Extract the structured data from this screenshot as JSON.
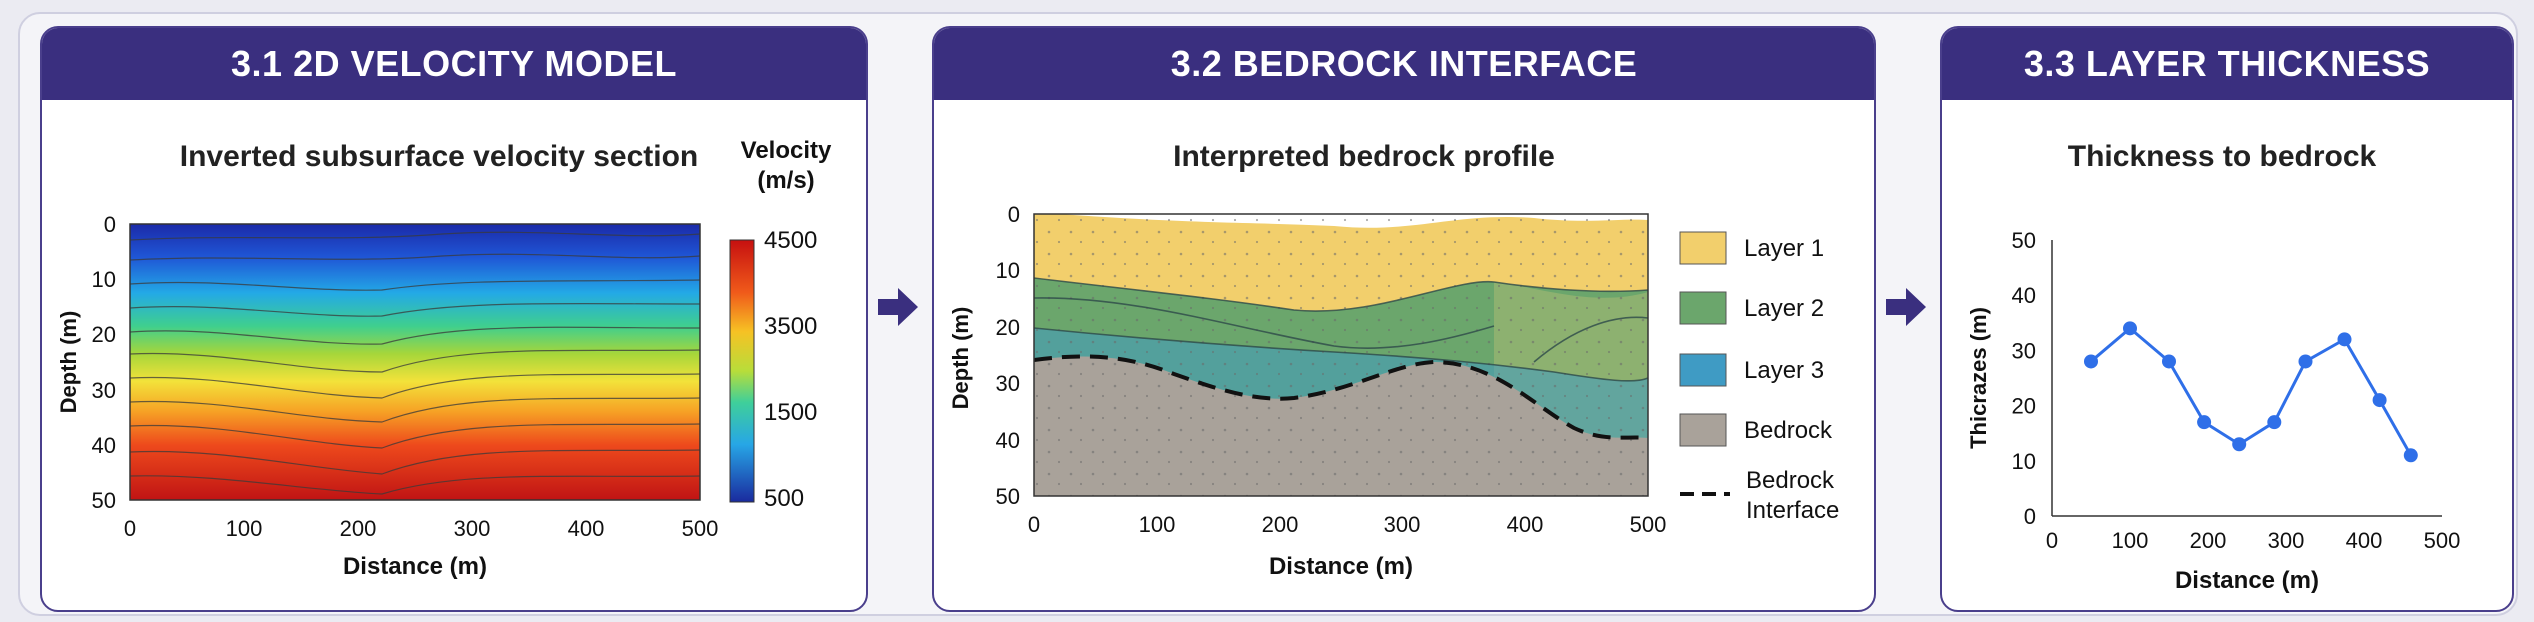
{
  "panels": [
    {
      "header": "3.1 2D VELOCITY MODEL",
      "subtitle": "Inverted subsurface velocity section",
      "xlabel": "Distance (m)",
      "ylabel": "Depth (m)",
      "x_ticks": [
        "0",
        "100",
        "200",
        "300",
        "400",
        "500"
      ],
      "y_ticks": [
        "0",
        "10",
        "20",
        "30",
        "40",
        "50"
      ],
      "colorbar_title_line1": "Velocity",
      "colorbar_title_line2": "(m/s)",
      "colorbar_ticks": [
        "4500",
        "3500",
        "1500",
        "500"
      ]
    },
    {
      "header": "3.2 BEDROCK INTERFACE",
      "subtitle": "Interpreted bedrock profile",
      "xlabel": "Distance (m)",
      "ylabel": "Depth (m)",
      "x_ticks": [
        "0",
        "100",
        "200",
        "300",
        "400",
        "500"
      ],
      "y_ticks": [
        "0",
        "10",
        "20",
        "30",
        "40",
        "50"
      ],
      "legend": [
        {
          "label": "Layer 1",
          "color": "#f2cf6c"
        },
        {
          "label": "Layer 2",
          "color": "#6ba66c"
        },
        {
          "label": "Layer 3",
          "color": "#3f9bc4"
        },
        {
          "label": "Bedrock",
          "color": "#a9a29a"
        }
      ],
      "legend_interface_line1": "Bedrock",
      "legend_interface_line2": "Interface"
    },
    {
      "header": "3.3 LAYER THICKNESS",
      "subtitle": "Thickness to bedrock",
      "xlabel": "Distance (m)",
      "ylabel": "Thicrazes (m)",
      "x_ticks": [
        "0",
        "100",
        "200",
        "300",
        "400",
        "500"
      ],
      "y_ticks": [
        "0",
        "10",
        "20",
        "30",
        "40",
        "50"
      ]
    }
  ],
  "chart_data": {
    "type": "line",
    "x": [
      50,
      100,
      150,
      195,
      240,
      285,
      325,
      375,
      420,
      460
    ],
    "series": [
      {
        "values": [
          28,
          34,
          28,
          17,
          13,
          17,
          28,
          32,
          21,
          11
        ],
        "color": "#2f6fe8"
      }
    ],
    "xlim": [
      0,
      500
    ],
    "ylim": [
      0,
      50
    ]
  },
  "colors": {
    "header_bg": "#3a2f7f",
    "arrow": "#3a2f7f",
    "line": "#2f6fe8",
    "interface": "#111111"
  }
}
